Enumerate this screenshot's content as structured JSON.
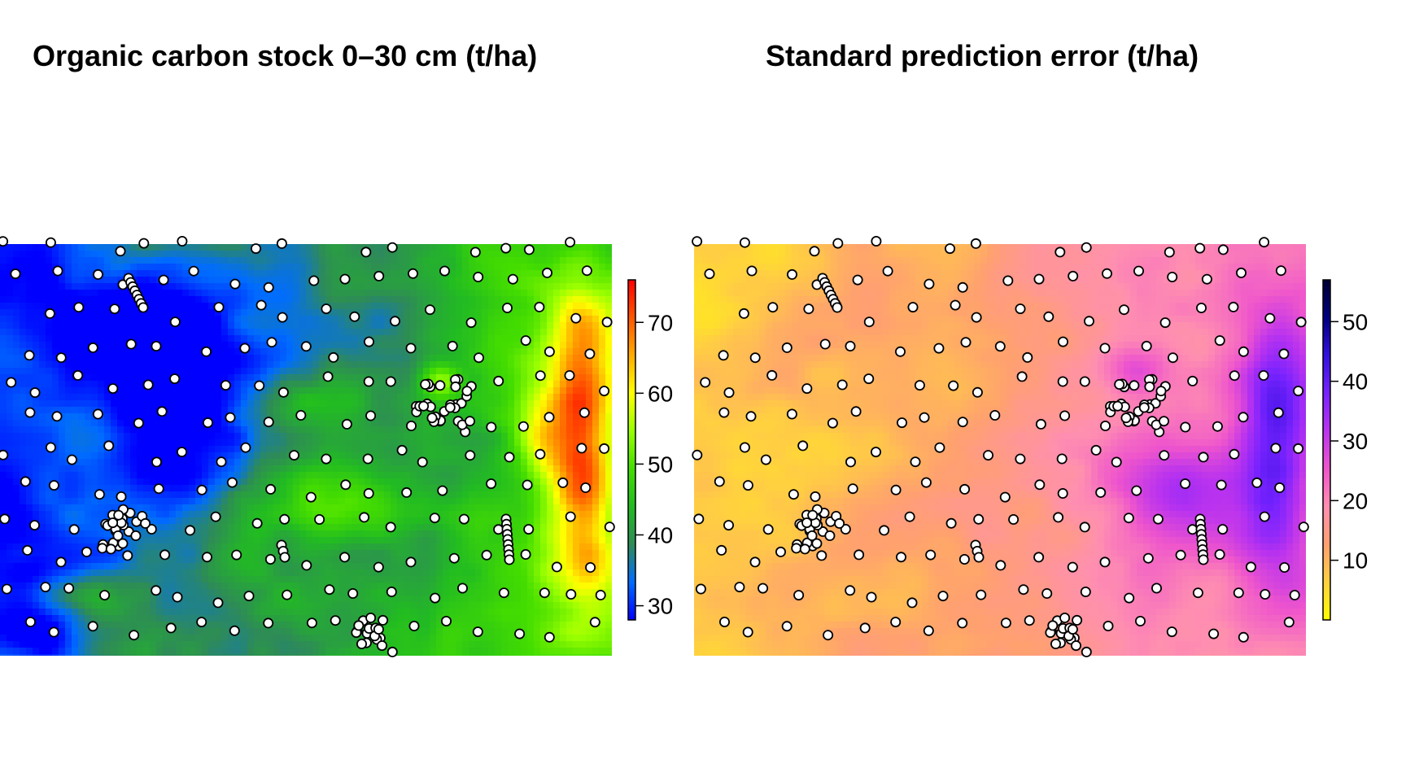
{
  "panels": [
    {
      "id": "carbon-stock",
      "title": "Organic carbon stock 0–30 cm (t/ha)",
      "legend": {
        "ticks": [
          "30",
          "40",
          "50",
          "60",
          "70"
        ],
        "tick_values": [
          30,
          40,
          50,
          60,
          70
        ],
        "range": [
          28,
          76
        ],
        "colors": [
          "#0000ff",
          "#006cff",
          "#2e8b57",
          "#22bb22",
          "#44dd00",
          "#99ff00",
          "#ffff00",
          "#ffaa00",
          "#ff5500",
          "#ff0000"
        ]
      }
    },
    {
      "id": "prediction-error",
      "title": "Standard prediction error (t/ha)",
      "legend": {
        "ticks": [
          "10",
          "20",
          "30",
          "40",
          "50"
        ],
        "tick_values": [
          10,
          20,
          30,
          40,
          50
        ],
        "range": [
          0,
          57
        ],
        "colors": [
          "#ffff00",
          "#ffd040",
          "#ffa070",
          "#ff8fb0",
          "#ee55cc",
          "#bb33ee",
          "#7722ff",
          "#3311dd",
          "#000080",
          "#000033"
        ]
      }
    }
  ],
  "marker_color": "#ffffff",
  "marker_stroke": "#000000"
}
